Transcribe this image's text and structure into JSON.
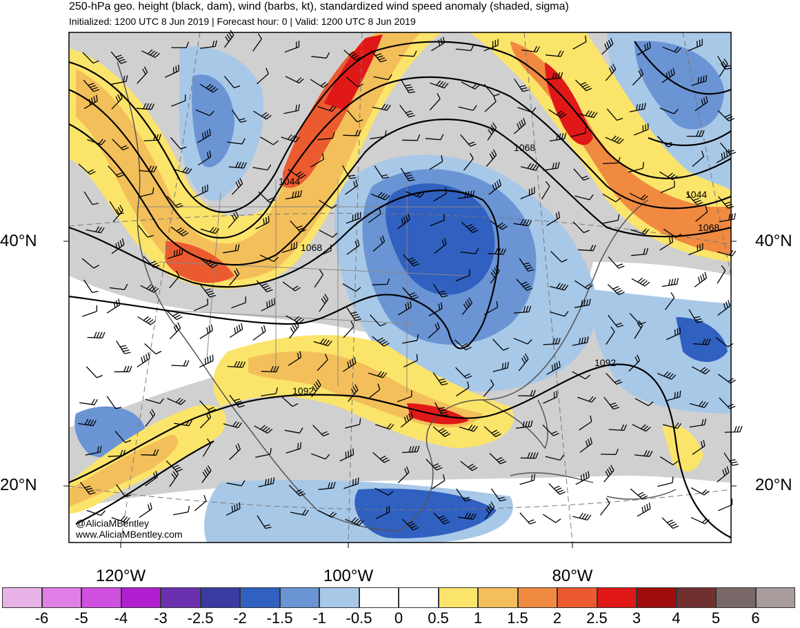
{
  "header": {
    "title": "250-hPa geo. height (black, dam), wind (barbs, kt), standardized wind speed anomaly (shaded, sigma)",
    "subtitle": "Initialized: 1200 UTC 8 Jun 2019 | Forecast hour: 0 | Valid: 1200 UTC 8 Jun 2019"
  },
  "map": {
    "lat_labels": {
      "north40_left": "40°N",
      "north40_right": "40°N",
      "north20_left": "20°N",
      "north20_right": "20°N"
    },
    "lon_labels": {
      "w120": "120°W",
      "w100": "100°W",
      "w80": "80°W"
    },
    "contour_labels": [
      "1044",
      "1068",
      "1068",
      "1044",
      "1068",
      "1092",
      "1092"
    ],
    "watermark": {
      "handle": "@AliciaMBentley",
      "site": "www.AliciaMBentley.com"
    }
  },
  "colorbar": {
    "ticks": [
      "-6",
      "-5",
      "-4",
      "-3",
      "-2.5",
      "-2",
      "-1.5",
      "-1",
      "-0.5",
      "0",
      "0.5",
      "1",
      "1.5",
      "2",
      "2.5",
      "3",
      "4",
      "5",
      "6"
    ],
    "colors": [
      "#e8b4e8",
      "#e080e6",
      "#d050e0",
      "#b020d0",
      "#6a30b0",
      "#3a3aa0",
      "#3060c0",
      "#6a94d4",
      "#a8c8e8",
      "#ffffff",
      "#ffffff",
      "#fbe46a",
      "#f3bf5a",
      "#f08a40",
      "#ec5a30",
      "#e01818",
      "#a00c0c",
      "#703030",
      "#786868",
      "#a89c9c"
    ]
  }
}
